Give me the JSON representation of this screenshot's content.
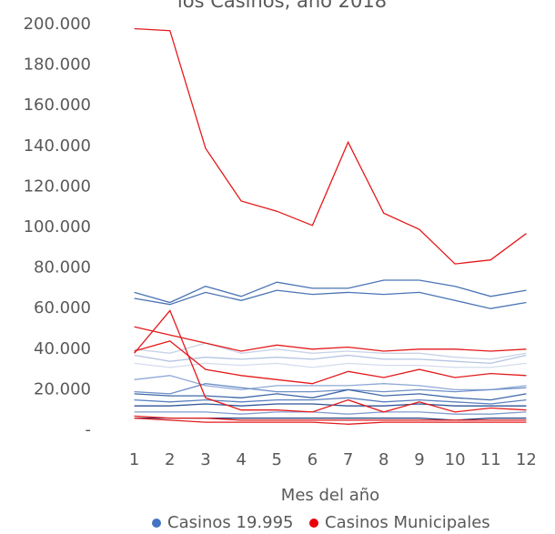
{
  "chart_data": {
    "type": "line",
    "title": "los Casinos, año 2018",
    "xlabel": "Mes del año",
    "categories": [
      "1",
      "2",
      "3",
      "4",
      "5",
      "6",
      "7",
      "8",
      "9",
      "10",
      "11",
      "12"
    ],
    "ylim": [
      0,
      200000
    ],
    "yticks": [
      {
        "value": 0,
        "label": "-"
      },
      {
        "value": 20000,
        "label": "20.000"
      },
      {
        "value": 40000,
        "label": "40.000"
      },
      {
        "value": 60000,
        "label": "60.000"
      },
      {
        "value": 80000,
        "label": "80.000"
      },
      {
        "value": 100000,
        "label": "100.000"
      },
      {
        "value": 120000,
        "label": "120.000"
      },
      {
        "value": 140000,
        "label": "140.000"
      },
      {
        "value": 160000,
        "label": "160.000"
      },
      {
        "value": 180000,
        "label": "180.000"
      },
      {
        "value": 200000,
        "label": "200.000"
      }
    ],
    "grid": false,
    "legend": "bottom",
    "series": [
      {
        "name": "Casinos 19.995",
        "color": "#4472c4",
        "lines": [
          {
            "color": "#4a74b4",
            "values": [
              68000,
              63000,
              71000,
              66000,
              73000,
              70000,
              70000,
              74000,
              74000,
              71000,
              66000,
              69000
            ]
          },
          {
            "color": "#4a74b4",
            "values": [
              65000,
              62000,
              68000,
              64000,
              69000,
              67000,
              68000,
              67000,
              68000,
              64000,
              60000,
              63000
            ]
          },
          {
            "color": "#c9d3e8",
            "values": [
              40000,
              38000,
              43000,
              38000,
              40000,
              38000,
              39000,
              38000,
              38000,
              36000,
              35000,
              38000
            ]
          },
          {
            "color": "#b4c4e2",
            "values": [
              37000,
              34000,
              36000,
              35000,
              36000,
              35000,
              37000,
              35000,
              35000,
              34000,
              33000,
              37000
            ]
          },
          {
            "color": "#d4dcec",
            "values": [
              33000,
              31000,
              33000,
              32000,
              33000,
              31000,
              33000,
              32000,
              32000,
              31000,
              31000,
              33000
            ]
          },
          {
            "color": "#8fa9d6",
            "values": [
              25000,
              27000,
              22000,
              20000,
              22000,
              22000,
              22000,
              23000,
              22000,
              20000,
              20000,
              22000
            ]
          },
          {
            "color": "#6d8fc8",
            "values": [
              19000,
              18000,
              23000,
              21000,
              19000,
              19000,
              20000,
              19000,
              20000,
              19000,
              20000,
              21000
            ]
          },
          {
            "color": "#3e67a9",
            "values": [
              18000,
              17000,
              17000,
              16000,
              18000,
              16000,
              20000,
              17000,
              18000,
              16000,
              15000,
              18000
            ]
          },
          {
            "color": "#5a80bf",
            "values": [
              15000,
              14000,
              15000,
              14000,
              15000,
              15000,
              16000,
              14000,
              15000,
              14000,
              13000,
              15000
            ]
          },
          {
            "color": "#2f5597",
            "values": [
              12000,
              12000,
              13000,
              12000,
              13000,
              13000,
              12000,
              12000,
              13000,
              12000,
              12000,
              12000
            ]
          },
          {
            "color": "#7f9ccf",
            "values": [
              9000,
              9000,
              9000,
              8000,
              9000,
              9000,
              8000,
              9000,
              9000,
              8000,
              8000,
              9000
            ]
          },
          {
            "color": "#1f3f7a",
            "values": [
              6000,
              6000,
              6000,
              6000,
              6000,
              6000,
              6000,
              6000,
              6000,
              5000,
              6000,
              6000
            ]
          }
        ]
      },
      {
        "name": "Casinos Municipales",
        "color": "#e8000b",
        "lines": [
          {
            "color": "#e41a1c",
            "values": [
              198000,
              197000,
              139000,
              113000,
              108000,
              101000,
              142000,
              107000,
              99000,
              82000,
              84000,
              97000
            ]
          },
          {
            "color": "#e41a1c",
            "values": [
              51000,
              47000,
              43000,
              39000,
              42000,
              40000,
              41000,
              39000,
              40000,
              40000,
              39000,
              40000
            ]
          },
          {
            "color": "#e41a1c",
            "values": [
              38000,
              59000,
              16000,
              10000,
              10000,
              9000,
              15000,
              9000,
              14000,
              9000,
              11000,
              10000
            ]
          },
          {
            "color": "#e41a1c",
            "values": [
              39000,
              44000,
              30000,
              27000,
              25000,
              23000,
              29000,
              26000,
              30000,
              26000,
              28000,
              27000
            ]
          },
          {
            "color": "#e41a1c",
            "values": [
              7000,
              6000,
              6000,
              5000,
              5000,
              5000,
              5000,
              5000,
              5000,
              5000,
              5000,
              5000
            ]
          },
          {
            "color": "#e41a1c",
            "values": [
              6000,
              5000,
              4000,
              4000,
              4000,
              4000,
              3000,
              4000,
              4000,
              4000,
              4000,
              4000
            ]
          }
        ]
      }
    ]
  }
}
